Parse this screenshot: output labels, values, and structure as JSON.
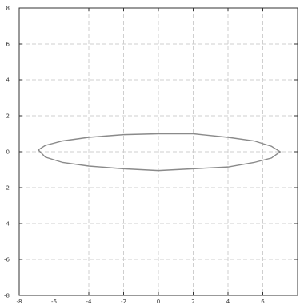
{
  "chart_data": {
    "type": "line",
    "title": "",
    "xlabel": "",
    "ylabel": "",
    "xlim": [
      -8,
      8
    ],
    "ylim": [
      -8,
      8
    ],
    "grid": true,
    "grid_style": "dashed",
    "colors": {
      "curve": "#8a8a8a",
      "grid": "#cfcfcf",
      "axes": "#333333"
    },
    "x_ticks": [
      -8,
      -6,
      -4,
      -2,
      0,
      2,
      4,
      6
    ],
    "y_ticks": [
      -8,
      -6,
      -4,
      -2,
      0,
      2,
      4,
      6,
      8
    ],
    "x_tick_labels": [
      "-8",
      "-6",
      "-4",
      "-2",
      "0",
      "2",
      "4",
      "6"
    ],
    "y_tick_labels": [
      "-8",
      "-6",
      "-4",
      "-2",
      "0",
      "2",
      "4",
      "6",
      "8"
    ],
    "series": [
      {
        "shape": "closed-ellipse",
        "points": [
          [
            -6.9,
            0.1
          ],
          [
            -6.5,
            0.35
          ],
          [
            -5.5,
            0.6
          ],
          [
            -4.0,
            0.8
          ],
          [
            -2.0,
            0.95
          ],
          [
            0.0,
            1.0
          ],
          [
            2.0,
            1.0
          ],
          [
            4.0,
            0.8
          ],
          [
            5.5,
            0.6
          ],
          [
            6.5,
            0.3
          ],
          [
            7.0,
            0.0
          ],
          [
            6.5,
            -0.35
          ],
          [
            5.5,
            -0.6
          ],
          [
            4.0,
            -0.85
          ],
          [
            2.0,
            -0.95
          ],
          [
            0.0,
            -1.05
          ],
          [
            -2.0,
            -0.95
          ],
          [
            -4.0,
            -0.8
          ],
          [
            -5.5,
            -0.6
          ],
          [
            -6.5,
            -0.3
          ],
          [
            -6.9,
            0.1
          ]
        ]
      }
    ]
  }
}
